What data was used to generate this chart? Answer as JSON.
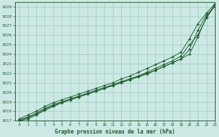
{
  "title": "Graphe pression niveau de la mer (hPa)",
  "xlabel": "Graphe pression niveau de la mer (hPa)",
  "xlim": [
    -0.5,
    23
  ],
  "ylim": [
    1017,
    1029.5
  ],
  "xticks": [
    0,
    1,
    2,
    3,
    4,
    5,
    6,
    7,
    8,
    9,
    10,
    11,
    12,
    13,
    14,
    15,
    16,
    17,
    18,
    19,
    20,
    21,
    22,
    23
  ],
  "yticks": [
    1017,
    1018,
    1019,
    1020,
    1021,
    1022,
    1023,
    1024,
    1025,
    1026,
    1027,
    1028,
    1029
  ],
  "background_color": "#cce8e4",
  "grid_color": "#99ccbb",
  "line_color": "#1e5c30",
  "marker": "+",
  "series": [
    [
      1017.1,
      1017.4,
      1017.8,
      1018.3,
      1018.7,
      1019.0,
      1019.3,
      1019.6,
      1019.9,
      1020.2,
      1020.5,
      1020.8,
      1021.1,
      1021.4,
      1021.7,
      1022.0,
      1022.3,
      1022.7,
      1023.1,
      1023.5,
      1024.0,
      1025.8,
      1027.9,
      1029.2
    ],
    [
      1017.0,
      1017.3,
      1017.7,
      1018.2,
      1018.6,
      1018.9,
      1019.2,
      1019.5,
      1019.8,
      1020.1,
      1020.4,
      1020.7,
      1021.0,
      1021.3,
      1021.6,
      1021.9,
      1022.3,
      1022.7,
      1023.1,
      1023.5,
      1024.5,
      1026.5,
      1028.1,
      1029.0
    ],
    [
      1017.0,
      1017.2,
      1017.6,
      1018.1,
      1018.5,
      1018.9,
      1019.2,
      1019.5,
      1019.8,
      1020.1,
      1020.4,
      1020.7,
      1021.1,
      1021.4,
      1021.7,
      1022.1,
      1022.5,
      1022.9,
      1023.3,
      1023.8,
      1025.0,
      1026.0,
      1027.8,
      1029.1
    ],
    [
      1017.2,
      1017.6,
      1018.0,
      1018.5,
      1018.9,
      1019.2,
      1019.5,
      1019.8,
      1020.1,
      1020.4,
      1020.7,
      1021.0,
      1021.4,
      1021.7,
      1022.1,
      1022.5,
      1022.9,
      1023.3,
      1023.7,
      1024.2,
      1025.6,
      1027.2,
      1028.3,
      1029.3
    ]
  ]
}
